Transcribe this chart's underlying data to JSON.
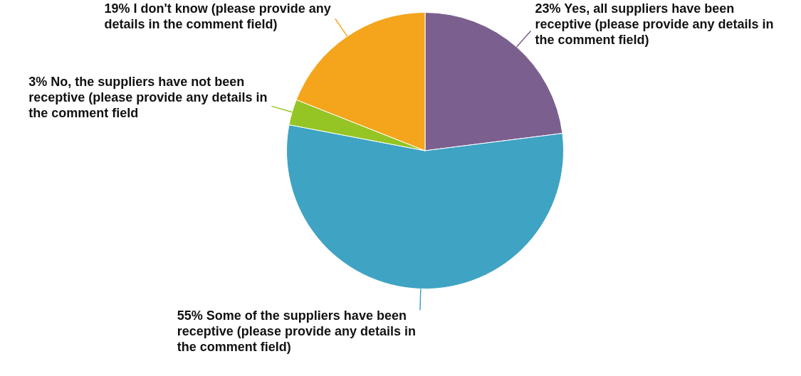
{
  "chart_data": {
    "type": "pie",
    "categories": [
      "Yes, all suppliers have been receptive (please provide any details in the comment field)",
      "Some of the suppliers have been receptive (please provide any details in the comment field)",
      "No, the suppliers have not been receptive (please provide any details in the comment field",
      "I don't know (please provide any details in the comment field)"
    ],
    "values": [
      23,
      55,
      3,
      19
    ],
    "value_labels": [
      "23%",
      "55%",
      "3%",
      "19%"
    ],
    "colors": [
      "#7b5f8e",
      "#3fa3c3",
      "#94c524",
      "#f4a51c"
    ],
    "legend": false
  }
}
